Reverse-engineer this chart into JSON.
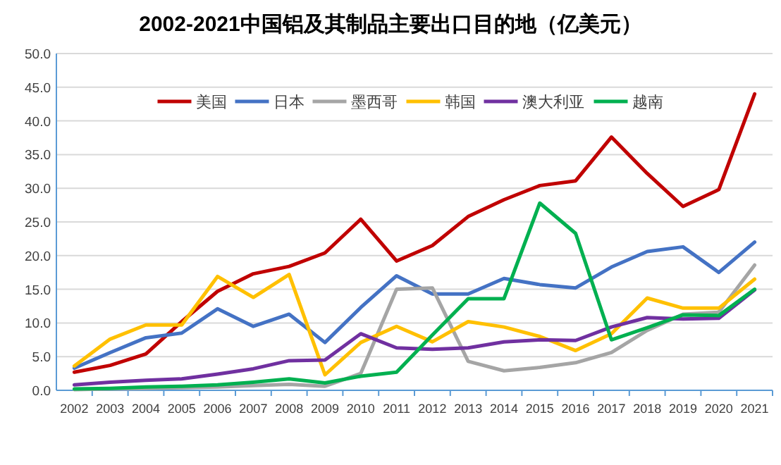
{
  "chart_data": {
    "type": "line",
    "title": "2002-2021中国铝及其制品主要出口目的地（亿美元）",
    "categories": [
      "2002",
      "2003",
      "2004",
      "2005",
      "2006",
      "2007",
      "2008",
      "2009",
      "2010",
      "2011",
      "2012",
      "2013",
      "2014",
      "2015",
      "2016",
      "2017",
      "2018",
      "2019",
      "2020",
      "2021"
    ],
    "series": [
      {
        "name": "美国",
        "color": "#c00000",
        "values": [
          2.7,
          3.7,
          5.4,
          10.2,
          14.7,
          17.3,
          18.4,
          20.4,
          25.4,
          19.2,
          21.5,
          25.8,
          28.3,
          30.4,
          31.1,
          37.6,
          32.2,
          27.3,
          29.8,
          44.0
        ]
      },
      {
        "name": "日本",
        "color": "#4472c4",
        "values": [
          3.3,
          5.6,
          7.8,
          8.5,
          12.1,
          9.5,
          11.3,
          7.1,
          12.3,
          17.0,
          14.3,
          14.3,
          16.6,
          15.7,
          15.2,
          18.3,
          20.6,
          21.3,
          17.5,
          22.0
        ]
      },
      {
        "name": "墨西哥",
        "color": "#a5a5a5",
        "values": [
          0.1,
          0.2,
          0.3,
          0.4,
          0.5,
          0.7,
          0.9,
          0.6,
          2.5,
          15.0,
          15.2,
          4.3,
          2.9,
          3.4,
          4.1,
          5.6,
          8.9,
          11.3,
          11.6,
          18.6
        ]
      },
      {
        "name": "韩国",
        "color": "#ffc000",
        "values": [
          3.6,
          7.6,
          9.7,
          9.7,
          16.9,
          13.8,
          17.2,
          2.3,
          7.1,
          9.5,
          7.2,
          10.2,
          9.4,
          8.0,
          5.9,
          8.4,
          13.7,
          12.2,
          12.2,
          16.5
        ]
      },
      {
        "name": "澳大利亚",
        "color": "#7030a0",
        "values": [
          0.8,
          1.2,
          1.5,
          1.7,
          2.4,
          3.2,
          4.4,
          4.5,
          8.4,
          6.3,
          6.1,
          6.3,
          7.2,
          7.5,
          7.4,
          9.4,
          10.8,
          10.6,
          10.7,
          14.9
        ]
      },
      {
        "name": "越南",
        "color": "#00b050",
        "values": [
          0.2,
          0.3,
          0.5,
          0.6,
          0.8,
          1.2,
          1.7,
          1.1,
          2.1,
          2.7,
          8.2,
          13.6,
          13.6,
          27.8,
          23.3,
          7.5,
          9.3,
          11.2,
          11.1,
          15.0
        ]
      }
    ],
    "ylim": [
      0,
      50
    ],
    "yticks": [
      {
        "value": 0,
        "label": "0.0"
      },
      {
        "value": 5,
        "label": "5.0"
      },
      {
        "value": 10,
        "label": "10.0"
      },
      {
        "value": 15,
        "label": "15.0"
      },
      {
        "value": 20,
        "label": "20.0"
      },
      {
        "value": 25,
        "label": "25.0"
      },
      {
        "value": 30,
        "label": "30.0"
      },
      {
        "value": 35,
        "label": "35.0"
      },
      {
        "value": 40,
        "label": "40.0"
      },
      {
        "value": 45,
        "label": "45.0"
      },
      {
        "value": 50,
        "label": "50.0"
      }
    ],
    "grid": "y",
    "legend": "top",
    "marker": "none",
    "line_style": "solid"
  }
}
